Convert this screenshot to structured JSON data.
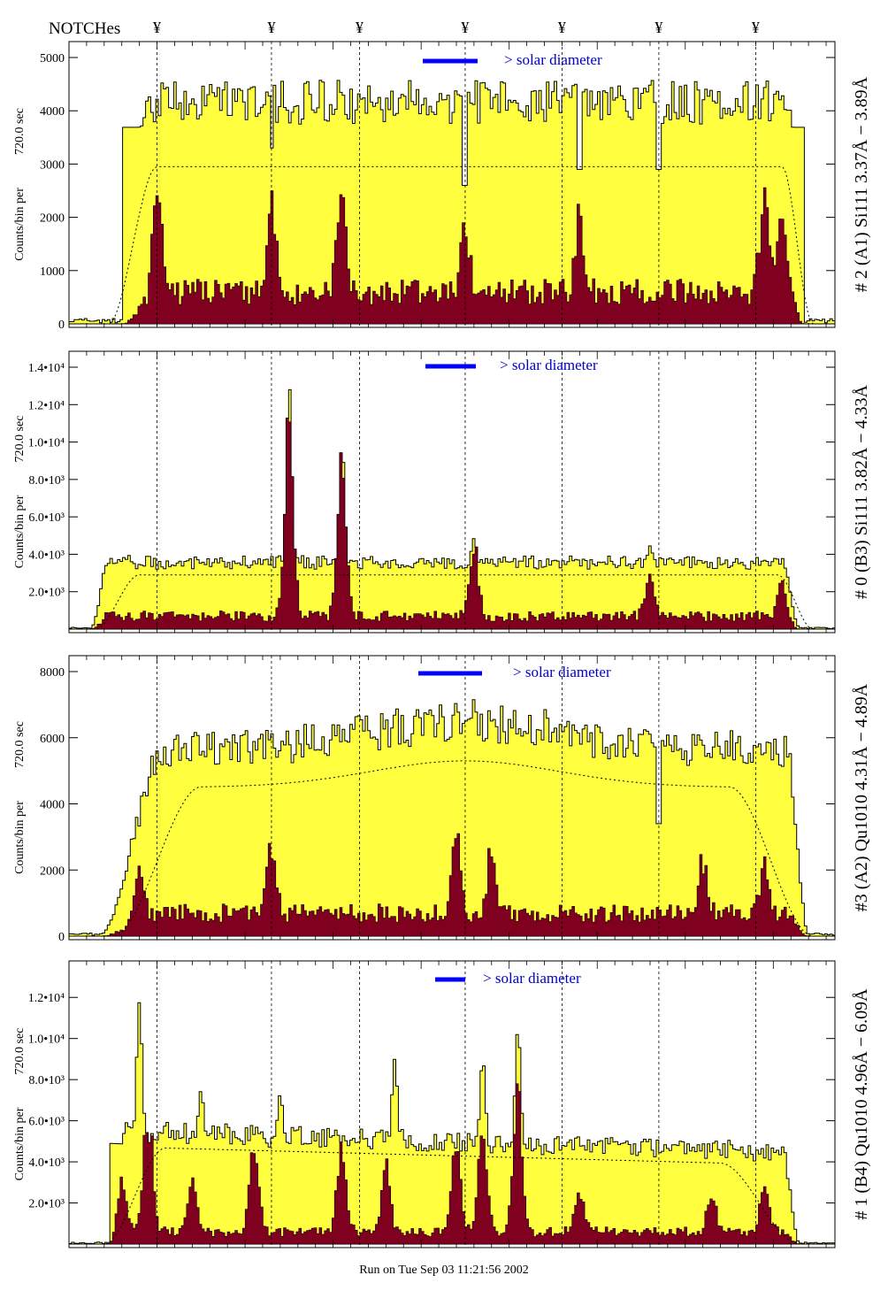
{
  "header": {
    "notches_label": "NOTCHes",
    "notch_symbol": "¥",
    "notch_x": [
      -4.0,
      -2.7,
      -1.7,
      -0.5,
      0.6,
      1.7,
      2.8
    ]
  },
  "footer": {
    "run_text": "Run on Tue Sep 03 11:21:56 2002"
  },
  "colors": {
    "total_fill": "#ffff40",
    "solar_fill": "#800020",
    "annotation_blue": "#0000cc",
    "legend_bar": "#0000ff"
  },
  "chart_data": [
    {
      "type": "area",
      "panel_title": "# 2 (A1) Si111  3.37Å − 3.89Å",
      "ylabel": "Counts/bin per",
      "ylabel2": "720.0 sec",
      "legend": "> solar diameter",
      "xlim": [
        -5.0,
        3.7
      ],
      "ylim": [
        0,
        5000
      ],
      "yticks": [
        0,
        1000,
        2000,
        3000,
        4000,
        5000
      ],
      "ytick_labels": [
        "0",
        "1000",
        "2000",
        "3000",
        "4000",
        "5000"
      ],
      "plateau": 4100,
      "dotted_level": 2950,
      "spikes": [
        [
          -4.1,
          4900
        ],
        [
          -2.7,
          4600
        ],
        [
          -1.9,
          4800
        ],
        [
          -1.7,
          4750
        ],
        [
          2.9,
          4850
        ],
        [
          3.1,
          4700
        ]
      ],
      "dips": [
        [
          -2.7,
          3300
        ],
        [
          -0.5,
          2600
        ],
        [
          0.8,
          2900
        ],
        [
          1.7,
          2900
        ]
      ],
      "solar_base": 600,
      "solar_peaks": [
        [
          -4.0,
          1900
        ],
        [
          -2.7,
          1800
        ],
        [
          -1.9,
          2100
        ],
        [
          -0.5,
          1300
        ],
        [
          0.8,
          1500
        ],
        [
          2.9,
          1900
        ],
        [
          3.1,
          1500
        ]
      ],
      "rise": [
        -4.4,
        -3.95
      ],
      "fall": [
        3.15,
        3.35
      ],
      "dot_rise": [
        -4.55,
        -4.0
      ],
      "dot_fall": [
        3.1,
        3.45
      ],
      "seed": 11
    },
    {
      "type": "area",
      "panel_title": "# 0 (B3) Si111  3.82Å − 4.33Å",
      "ylabel": "Counts/bin per",
      "ylabel2": "720.0 sec",
      "legend": "> solar diameter",
      "xlim": [
        -5.0,
        3.7
      ],
      "ylim": [
        0,
        14000
      ],
      "yticks": [
        2000,
        4000,
        6000,
        8000,
        10000,
        12000,
        14000
      ],
      "ytick_labels": [
        "2.0•10³",
        "4.0•10³",
        "6.0•10³",
        "8.0•10³",
        "1.0•10⁴",
        "1.2•10⁴",
        "1.4•10⁴"
      ],
      "plateau": 3500,
      "dotted_level": 2900,
      "spikes": [
        [
          -2.5,
          13500
        ],
        [
          -1.9,
          10200
        ],
        [
          -0.4,
          5200
        ],
        [
          1.6,
          4800
        ]
      ],
      "dips": [],
      "solar_base": 700,
      "solar_peaks": [
        [
          -2.5,
          10800
        ],
        [
          -1.9,
          8000
        ],
        [
          -0.4,
          3900
        ],
        [
          1.6,
          2000
        ],
        [
          3.1,
          1900
        ]
      ],
      "rise": [
        -4.75,
        -4.55
      ],
      "fall": [
        3.1,
        3.3
      ],
      "dot_rise": [
        -4.7,
        -4.2
      ],
      "dot_fall": [
        3.05,
        3.45
      ],
      "seed": 23
    },
    {
      "type": "area",
      "panel_title": "#3 (A2) Qu1010  4.31Å − 4.89Å",
      "ylabel": "Counts/bin per",
      "ylabel2": "720.0 sec",
      "legend": "> solar diameter",
      "xlim": [
        -5.0,
        3.7
      ],
      "ylim": [
        0,
        8000
      ],
      "yticks": [
        0,
        2000,
        4000,
        6000,
        8000
      ],
      "ytick_labels": [
        "0",
        "2000",
        "4000",
        "6000",
        "8000"
      ],
      "plateau": 5600,
      "dotted_level": 4500,
      "spikes": [
        [
          -2.7,
          6700
        ],
        [
          -0.6,
          7700
        ],
        [
          -0.4,
          7800
        ]
      ],
      "dips": [
        [
          1.7,
          3400
        ]
      ],
      "solar_base": 700,
      "solar_peaks": [
        [
          -4.2,
          1700
        ],
        [
          -2.7,
          2000
        ],
        [
          -0.6,
          2300
        ],
        [
          -0.2,
          1800
        ],
        [
          2.2,
          1600
        ],
        [
          2.9,
          1600
        ]
      ],
      "rise": [
        -4.65,
        -3.9
      ],
      "fall": [
        3.15,
        3.4
      ],
      "dot_rise": [
        -4.5,
        -3.5
      ],
      "dot_fall": [
        2.5,
        3.45
      ],
      "center_bulge": 800,
      "seed": 37
    },
    {
      "type": "area",
      "panel_title": "# 1 (B4) Qu1010 4.96Å − 6.09Å",
      "ylabel": "Counts/bin per",
      "ylabel2": "720.0 sec",
      "legend": "> solar diameter",
      "xlim": [
        -5.0,
        3.7
      ],
      "ylim": [
        0,
        13000
      ],
      "yticks": [
        2000,
        4000,
        6000,
        8000,
        10000,
        12000
      ],
      "ytick_labels": [
        "2.0•10³",
        "4.0•10³",
        "6.0•10³",
        "8.0•10³",
        "1.0•10⁴",
        "1.2•10⁴"
      ],
      "plateau": 5500,
      "dotted_level": 4800,
      "spikes": [
        [
          -4.2,
          12300
        ],
        [
          -3.5,
          8000
        ],
        [
          -2.6,
          7800
        ],
        [
          -1.3,
          9500
        ],
        [
          -0.3,
          9500
        ],
        [
          0.1,
          11000
        ]
      ],
      "dips": [],
      "solar_base": 600,
      "solar_peaks": [
        [
          -4.4,
          2500
        ],
        [
          -4.1,
          6300
        ],
        [
          -3.6,
          2500
        ],
        [
          -2.9,
          4500
        ],
        [
          -1.9,
          4200
        ],
        [
          -1.4,
          3200
        ],
        [
          -0.6,
          4500
        ],
        [
          -0.3,
          5000
        ],
        [
          0.1,
          6700
        ],
        [
          0.8,
          2000
        ],
        [
          2.3,
          1800
        ],
        [
          2.9,
          2500
        ]
      ],
      "rise": [
        -4.55,
        -4.35
      ],
      "fall": [
        3.1,
        3.3
      ],
      "dot_rise": [
        -4.6,
        -3.9
      ],
      "dot_fall": [
        2.4,
        3.3
      ],
      "slope": 0.6,
      "seed": 53
    }
  ]
}
